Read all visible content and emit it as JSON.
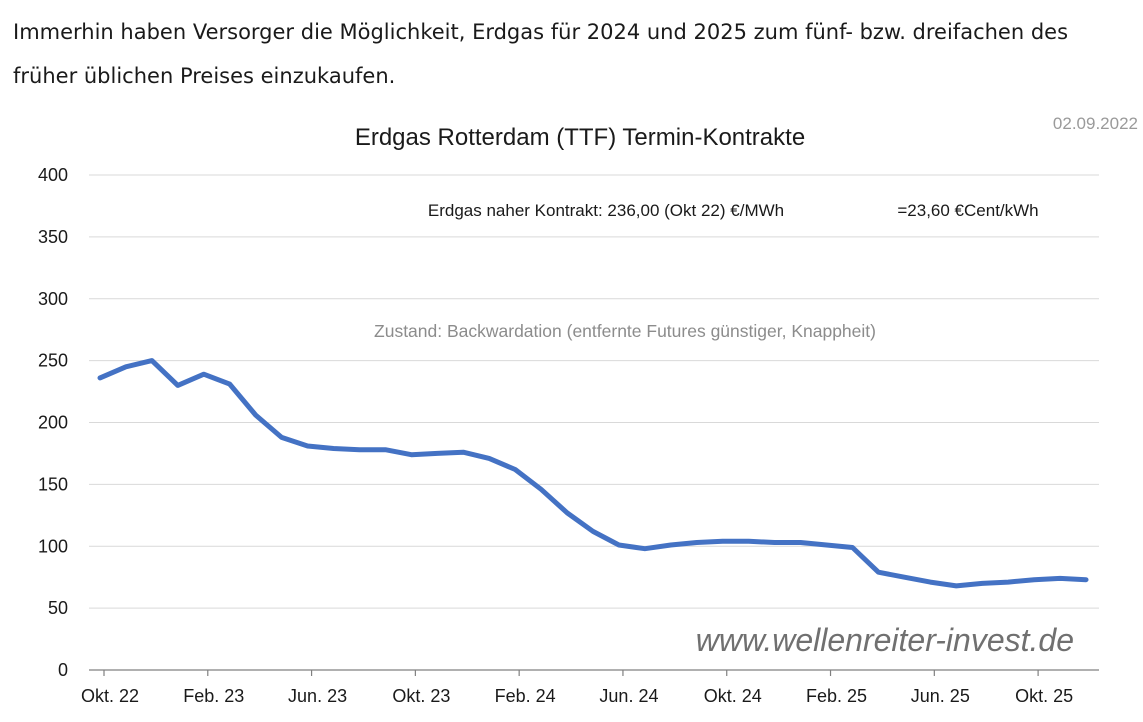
{
  "intro_text": "Immerhin haben Versorger die Möglichkeit, Erdgas für 2024 und 2025 zum fünf- bzw. dreifachen des früher üblichen Preises einzukaufen.",
  "date": "02.09.2022",
  "chart_data": {
    "type": "line",
    "title": "Erdgas Rotterdam (TTF) Termin-Kontrakte",
    "xlabel": "",
    "ylabel": "",
    "ylim": [
      0,
      400
    ],
    "yticks": [
      0,
      50,
      100,
      150,
      200,
      250,
      300,
      350,
      400
    ],
    "xtick_labels": [
      "Okt. 22",
      "Feb. 23",
      "Jun. 23",
      "Okt. 23",
      "Feb. 24",
      "Jun. 24",
      "Okt. 24",
      "Feb. 25",
      "Jun. 25",
      "Okt. 25"
    ],
    "x": [
      "Okt. 22",
      "Nov. 22",
      "Dez. 22",
      "Jan. 23",
      "Feb. 23",
      "Mär. 23",
      "Apr. 23",
      "Mai. 23",
      "Jun. 23",
      "Jul. 23",
      "Aug. 23",
      "Sep. 23",
      "Okt. 23",
      "Nov. 23",
      "Dez. 23",
      "Jan. 24",
      "Feb. 24",
      "Mär. 24",
      "Apr. 24",
      "Mai. 24",
      "Jun. 24",
      "Jul. 24",
      "Aug. 24",
      "Sep. 24",
      "Okt. 24",
      "Nov. 24",
      "Dez. 24",
      "Jan. 25",
      "Feb. 25",
      "Mär. 25",
      "Apr. 25",
      "Mai. 25",
      "Jun. 25",
      "Jul. 25",
      "Aug. 25",
      "Sep. 25",
      "Okt. 25",
      "Nov. 25",
      "Dez. 25"
    ],
    "series": [
      {
        "color": "#4472c4",
        "values": [
          236,
          245,
          250,
          230,
          239,
          231,
          206,
          188,
          181,
          179,
          178,
          178,
          174,
          175,
          176,
          171,
          162,
          146,
          127,
          112,
          101,
          98,
          101,
          103,
          104,
          104,
          103,
          103,
          101,
          99,
          79,
          75,
          71,
          68,
          70,
          71,
          73,
          74,
          73
        ]
      }
    ],
    "annotations": [
      "Erdgas naher Kontrakt: 236,00 (Okt 22) €/MWh",
      "=23,60 €Cent/kWh",
      "Zustand: Backwardation (entfernte Futures günstiger, Knappheit)"
    ],
    "watermark": "www.wellenreiter-invest.de",
    "grid": true,
    "legend": "none"
  }
}
